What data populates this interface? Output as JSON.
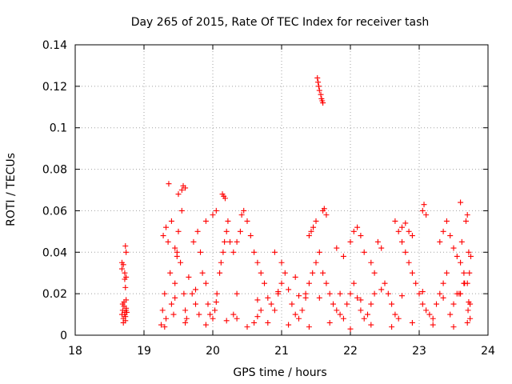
{
  "chart_data": {
    "type": "scatter",
    "title": "Day 265 of 2015, Rate Of TEC Index for receiver tash",
    "xlabel": "GPS time / hours",
    "ylabel": "ROTI / TECUs",
    "xlim": [
      18,
      24
    ],
    "ylim": [
      0,
      0.14
    ],
    "x_ticks": [
      "18",
      "19",
      "20",
      "21",
      "22",
      "23",
      "24"
    ],
    "y_ticks": [
      "0",
      "0.02",
      "0.04",
      "0.06",
      "0.08",
      "0.1",
      "0.12",
      "0.14"
    ],
    "grid": true,
    "marker": "+",
    "series_color": "#ff0000",
    "series": [
      {
        "name": "ROTI",
        "x": [
          18.68,
          18.69,
          18.7,
          18.71,
          18.72,
          18.73,
          18.74,
          18.68,
          18.7,
          18.72,
          18.74,
          18.69,
          18.71,
          18.73,
          18.7,
          18.72,
          18.74,
          18.68,
          18.72,
          18.73,
          18.74,
          18.73,
          18.74,
          18.75,
          21.52,
          21.53,
          21.54,
          21.55,
          21.57,
          21.58,
          21.59,
          21.6,
          19.25,
          19.27,
          19.3,
          19.32,
          19.35,
          19.38,
          19.4,
          19.43,
          19.45,
          19.48,
          19.5,
          19.53,
          19.55,
          19.58,
          19.6,
          19.62,
          19.36,
          19.4,
          19.5,
          19.55,
          19.57,
          19.6,
          19.28,
          19.32,
          19.45,
          19.48,
          19.65,
          19.7,
          19.75,
          19.8,
          19.72,
          19.78,
          19.82,
          19.85,
          19.9,
          19.93,
          19.96,
          20.0,
          20.03,
          20.06,
          20.1,
          20.12,
          20.15,
          20.17,
          20.2,
          20.22,
          20.25,
          19.9,
          20.0,
          20.05,
          20.14,
          20.16,
          20.18,
          20.3,
          20.35,
          20.4,
          20.42,
          20.45,
          20.5,
          20.55,
          20.6,
          20.65,
          20.7,
          20.75,
          20.8,
          20.85,
          20.9,
          20.95,
          21.0,
          21.05,
          21.1,
          21.15,
          21.2,
          21.25,
          21.3,
          21.35,
          21.4,
          21.45,
          21.5,
          21.55,
          20.3,
          20.35,
          20.6,
          20.65,
          20.7,
          20.9,
          21.0,
          21.2,
          21.35,
          21.4,
          21.43,
          21.46,
          21.5,
          21.6,
          21.62,
          21.65,
          21.6,
          21.65,
          21.7,
          21.75,
          21.8,
          21.85,
          21.9,
          21.95,
          22.0,
          22.05,
          22.1,
          22.15,
          22.2,
          22.25,
          22.3,
          22.35,
          21.8,
          21.9,
          22.0,
          22.05,
          22.1,
          22.15,
          22.2,
          22.3,
          22.35,
          22.4,
          22.45,
          22.5,
          22.55,
          22.6,
          22.65,
          22.7,
          22.65,
          22.7,
          22.75,
          22.8,
          22.85,
          22.9,
          22.95,
          23.0,
          23.05,
          23.1,
          23.15,
          23.2,
          23.25,
          23.3,
          23.35,
          23.4,
          22.75,
          22.8,
          22.85,
          22.9,
          23.05,
          23.07,
          23.1,
          23.3,
          23.35,
          23.4,
          23.45,
          23.5,
          23.55,
          23.6,
          23.65,
          23.7,
          23.45,
          23.5,
          23.55,
          23.6,
          23.65,
          23.7,
          23.72,
          23.75,
          23.62,
          23.68,
          23.73,
          23.74,
          23.58,
          23.66,
          23.71,
          23.74,
          19.3,
          19.6,
          19.9,
          20.2,
          20.5,
          20.8,
          21.1,
          21.4,
          21.7,
          22.0,
          22.3,
          22.6,
          22.9,
          23.2,
          23.5,
          23.7,
          19.45,
          19.75,
          20.05,
          20.35,
          20.65,
          20.95,
          21.25,
          21.55,
          21.85,
          22.15,
          22.45,
          22.75,
          23.05,
          23.35,
          23.6,
          23.72
        ],
        "y": [
          0.01,
          0.012,
          0.008,
          0.014,
          0.011,
          0.009,
          0.013,
          0.035,
          0.034,
          0.03,
          0.028,
          0.015,
          0.016,
          0.007,
          0.006,
          0.01,
          0.012,
          0.032,
          0.027,
          0.023,
          0.04,
          0.043,
          0.017,
          0.011,
          0.124,
          0.122,
          0.12,
          0.118,
          0.116,
          0.114,
          0.113,
          0.112,
          0.005,
          0.012,
          0.02,
          0.008,
          0.045,
          0.03,
          0.015,
          0.01,
          0.025,
          0.04,
          0.05,
          0.035,
          0.06,
          0.02,
          0.012,
          0.008,
          0.073,
          0.055,
          0.068,
          0.07,
          0.072,
          0.071,
          0.048,
          0.052,
          0.042,
          0.038,
          0.028,
          0.02,
          0.015,
          0.01,
          0.045,
          0.05,
          0.04,
          0.03,
          0.025,
          0.015,
          0.01,
          0.008,
          0.012,
          0.02,
          0.03,
          0.035,
          0.04,
          0.045,
          0.05,
          0.055,
          0.045,
          0.055,
          0.058,
          0.06,
          0.068,
          0.067,
          0.066,
          0.04,
          0.045,
          0.05,
          0.058,
          0.06,
          0.055,
          0.048,
          0.04,
          0.035,
          0.03,
          0.025,
          0.018,
          0.015,
          0.012,
          0.02,
          0.025,
          0.03,
          0.022,
          0.015,
          0.01,
          0.008,
          0.012,
          0.018,
          0.025,
          0.03,
          0.035,
          0.04,
          0.01,
          0.008,
          0.006,
          0.009,
          0.012,
          0.04,
          0.035,
          0.028,
          0.02,
          0.048,
          0.05,
          0.052,
          0.055,
          0.06,
          0.061,
          0.058,
          0.03,
          0.025,
          0.02,
          0.015,
          0.012,
          0.01,
          0.008,
          0.015,
          0.02,
          0.025,
          0.018,
          0.012,
          0.008,
          0.01,
          0.015,
          0.02,
          0.042,
          0.038,
          0.045,
          0.05,
          0.052,
          0.048,
          0.04,
          0.035,
          0.03,
          0.045,
          0.042,
          0.025,
          0.02,
          0.015,
          0.01,
          0.008,
          0.055,
          0.05,
          0.045,
          0.04,
          0.035,
          0.03,
          0.025,
          0.02,
          0.015,
          0.012,
          0.01,
          0.008,
          0.015,
          0.02,
          0.025,
          0.03,
          0.052,
          0.054,
          0.05,
          0.048,
          0.06,
          0.063,
          0.058,
          0.045,
          0.05,
          0.055,
          0.048,
          0.042,
          0.038,
          0.035,
          0.03,
          0.025,
          0.01,
          0.015,
          0.02,
          0.064,
          0.025,
          0.058,
          0.04,
          0.038,
          0.045,
          0.055,
          0.03,
          0.015,
          0.02,
          0.025,
          0.012,
          0.008,
          0.004,
          0.006,
          0.005,
          0.007,
          0.004,
          0.006,
          0.005,
          0.004,
          0.006,
          0.003,
          0.005,
          0.004,
          0.006,
          0.005,
          0.004,
          0.006,
          0.018,
          0.022,
          0.016,
          0.02,
          0.017,
          0.021,
          0.019,
          0.018,
          0.02,
          0.017,
          0.022,
          0.019,
          0.021,
          0.018,
          0.02,
          0.016
        ]
      }
    ]
  }
}
